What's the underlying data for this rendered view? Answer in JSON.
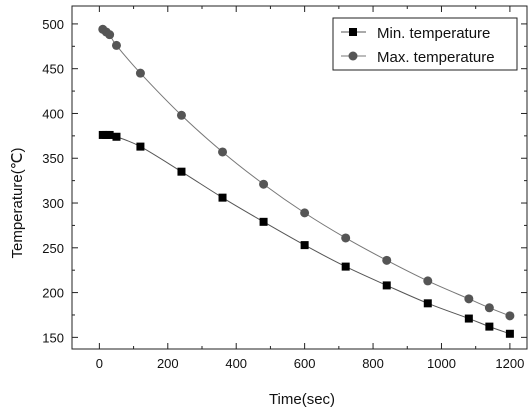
{
  "chart_data": {
    "type": "scatter",
    "title": "",
    "xlabel": "Time(sec)",
    "ylabel": "Temperature(℃)",
    "xlim": [
      -80,
      1250
    ],
    "ylim": [
      137,
      520
    ],
    "x_ticks": [
      0,
      200,
      400,
      600,
      800,
      1000,
      1200
    ],
    "x_tick_labels": [
      "0",
      "200",
      "400",
      "600",
      "800",
      "1000",
      "1200"
    ],
    "y_ticks": [
      150,
      200,
      250,
      300,
      350,
      400,
      450,
      500
    ],
    "y_tick_labels": [
      "150",
      "200",
      "250",
      "300",
      "350",
      "400",
      "450",
      "500"
    ],
    "grid": false,
    "legend_position": "top-right",
    "series": [
      {
        "name": "Min. temperature",
        "marker": "square",
        "color": "#000000",
        "line_color": "#555555",
        "x": [
          10,
          20,
          30,
          50,
          120,
          240,
          360,
          480,
          600,
          720,
          840,
          960,
          1080,
          1140,
          1200
        ],
        "y": [
          376,
          376,
          376,
          374,
          363,
          335,
          306,
          279,
          253,
          229,
          208,
          188,
          171,
          162,
          154
        ]
      },
      {
        "name": "Max. temperature",
        "marker": "circle",
        "color": "#555555",
        "line_color": "#777777",
        "x": [
          10,
          20,
          30,
          50,
          120,
          240,
          360,
          480,
          600,
          720,
          840,
          960,
          1080,
          1140,
          1200
        ],
        "y": [
          494,
          491,
          488,
          476,
          445,
          398,
          357,
          321,
          289,
          261,
          236,
          213,
          193,
          183,
          174
        ]
      }
    ]
  }
}
